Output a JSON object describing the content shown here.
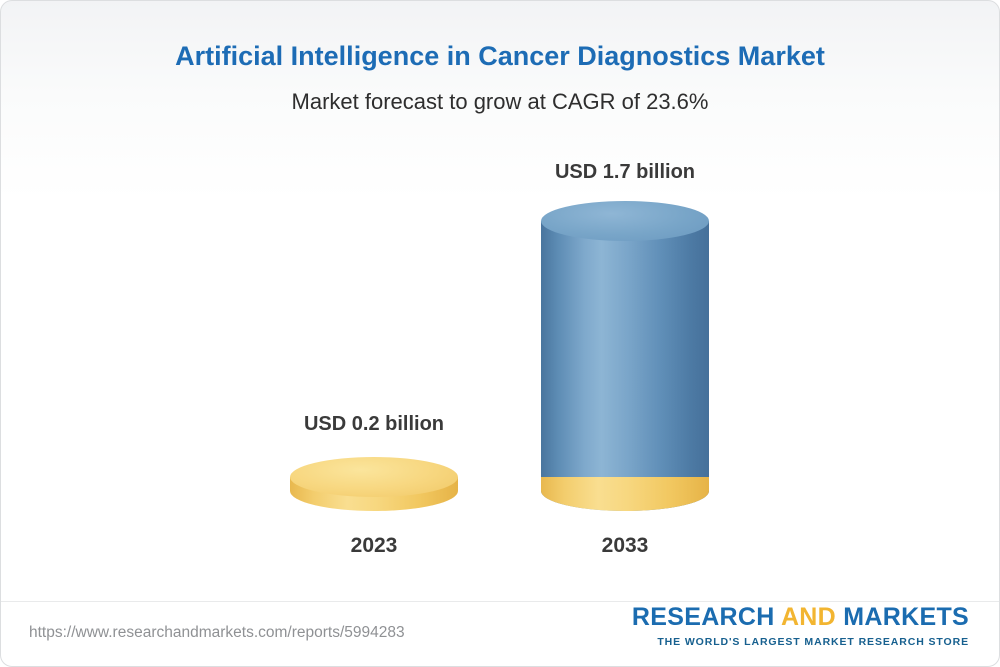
{
  "header": {
    "title": "Artificial Intelligence in Cancer Diagnostics Market",
    "subtitle": "Market forecast to grow at CAGR of 23.6%"
  },
  "chart_data": {
    "type": "bar",
    "title": "Artificial Intelligence in Cancer Diagnostics Market",
    "subtitle": "Market forecast to grow at CAGR of 23.6%",
    "categories": [
      "2023",
      "2033"
    ],
    "values": [
      0.2,
      1.7
    ],
    "unit": "USD billion",
    "value_labels": [
      "USD 0.2 billion",
      "USD 1.7 billion"
    ],
    "cagr": "23.6%",
    "ylim": [
      0,
      1.8
    ],
    "legend": "none",
    "grid": false,
    "colors": {
      "bar_2023": "#f6cf6f",
      "bar_2033": "#6a98bf",
      "bar_2033_base": "#f6cf6f",
      "title": "#1d6cb5"
    }
  },
  "bars": [
    {
      "year": "2023",
      "label": "USD 0.2 billion",
      "value": 0.2
    },
    {
      "year": "2033",
      "label": "USD 1.7 billion",
      "value": 1.7
    }
  ],
  "footer": {
    "url": "https://www.researchandmarkets.com/reports/5994283",
    "logo": {
      "part1": "RESEARCH",
      "part2": "AND",
      "part3": "MARKETS",
      "tagline": "THE WORLD'S LARGEST MARKET RESEARCH STORE"
    }
  }
}
